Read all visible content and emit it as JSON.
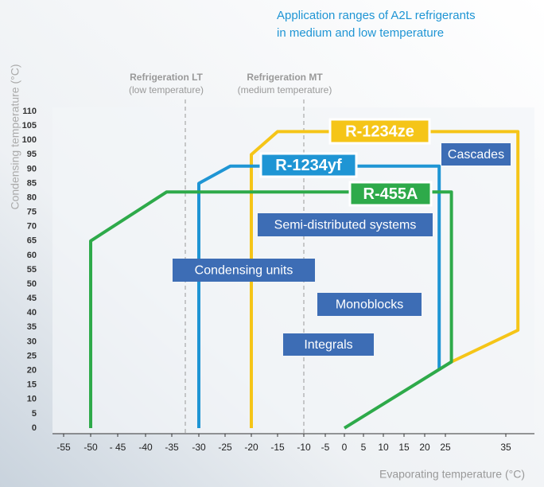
{
  "chart_data": {
    "type": "envelope",
    "title": [
      "Application ranges of A2L refrigerants",
      "in medium and low temperature"
    ],
    "x_label": "Evaporating temperature (°C)",
    "y_label": "Condensing temperature (°C)",
    "xlim": [
      -57,
      39
    ],
    "ylim": [
      -2,
      110
    ],
    "xticks": [
      -55,
      -50,
      {
        "value": -45,
        "label": "- 45"
      },
      -40,
      -35,
      -30,
      -25,
      -20,
      -15,
      -10,
      -5,
      0,
      5,
      10,
      15,
      20,
      25,
      35
    ],
    "yticks": [
      0,
      5,
      10,
      15,
      20,
      25,
      30,
      35,
      40,
      45,
      50,
      55,
      60,
      65,
      70,
      75,
      80,
      85,
      90,
      95,
      100,
      105,
      110
    ],
    "reference_lines": [
      {
        "name": "Refrigeration LT",
        "note": "(low temperature)",
        "x": -32.5
      },
      {
        "name": "Refrigeration MT",
        "note": "(medium temperature)",
        "x": -10
      }
    ],
    "series": [
      {
        "name": "R-1234ze",
        "color": "#f5c518",
        "x": [
          -20,
          -20,
          -15,
          37,
          37,
          26
        ],
        "values": [
          0,
          95,
          103,
          103,
          34,
          23
        ]
      },
      {
        "name": "R-1234yf",
        "color": "#1f95d4",
        "x": [
          -30,
          -30,
          -24,
          23.5,
          23.5
        ],
        "values": [
          0,
          85,
          91,
          91,
          20
        ]
      },
      {
        "name": "R-455A",
        "color": "#2eaa4a",
        "x": [
          -50,
          -50,
          -36,
          26,
          26,
          0
        ],
        "values": [
          0,
          65,
          82,
          82,
          23,
          0
        ]
      }
    ],
    "regions": [
      "Cascades",
      "Semi-distributed systems",
      "Condensing units",
      "Monoblocks",
      "Integrals"
    ],
    "region_color": "#3d6db5"
  }
}
